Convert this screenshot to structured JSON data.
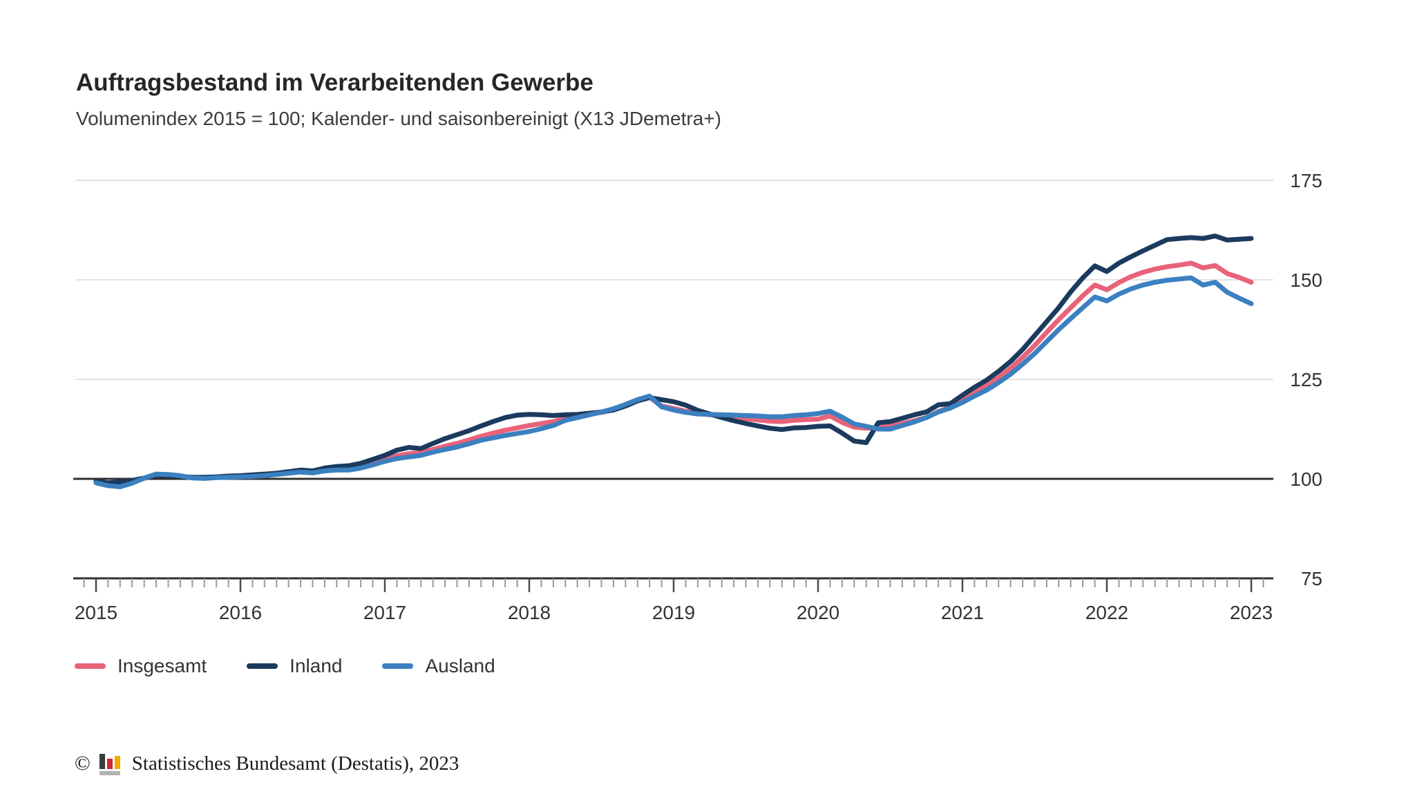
{
  "footer": {
    "copyright": "©",
    "source": "Statistisches Bundesamt (Destatis), 2023"
  },
  "logo_colors": {
    "black": "#3c3c3b",
    "red": "#d22832",
    "yellow": "#f0ab00",
    "gray": "#b2b2b2"
  },
  "chart_data": {
    "type": "line",
    "title": "Auftragsbestand im Verarbeitenden Gewerbe",
    "subtitle": "Volumenindex 2015 = 100; Kalender- und saisonbereinigt (X13 JDemetra+)",
    "x": {
      "start": "2015-01",
      "end": "2023-01",
      "frequency": "monthly",
      "n_points": 97
    },
    "x_tick_labels": [
      "2015",
      "2016",
      "2017",
      "2018",
      "2019",
      "2020",
      "2021",
      "2022",
      "2023"
    ],
    "y_ticks": [
      75,
      100,
      125,
      150,
      175
    ],
    "ylim": [
      75,
      175
    ],
    "baseline": 100,
    "grid": true,
    "legend_position": "bottom-left",
    "colors": {
      "grid": "#d9d9d9",
      "axis": "#2f2f2f",
      "minor_tick": "#9a9a9a",
      "major_tick": "#4a4a4a",
      "label": "#333333"
    },
    "series": [
      {
        "name": "Insgesamt",
        "color": "#e8637a",
        "values": [
          99.2,
          98.6,
          98.4,
          99.2,
          100.1,
          101.0,
          100.9,
          100.7,
          100.3,
          100.2,
          100.4,
          100.5,
          100.6,
          100.8,
          101.0,
          101.2,
          101.6,
          101.9,
          101.7,
          102.3,
          102.6,
          102.7,
          103.2,
          104.1,
          105.0,
          105.8,
          106.3,
          106.6,
          107.4,
          108.2,
          108.9,
          109.8,
          110.7,
          111.5,
          112.2,
          112.8,
          113.4,
          113.9,
          114.4,
          115.2,
          115.7,
          116.2,
          116.7,
          117.4,
          118.4,
          119.7,
          120.5,
          118.3,
          117.7,
          117.0,
          116.5,
          116.1,
          115.8,
          115.5,
          115.1,
          114.8,
          114.5,
          114.4,
          114.7,
          114.9,
          115.0,
          115.8,
          114.2,
          113.0,
          112.7,
          112.9,
          113.2,
          113.9,
          114.6,
          115.4,
          116.9,
          118.0,
          120.0,
          121.7,
          123.4,
          125.4,
          127.8,
          130.5,
          133.5,
          136.8,
          140.0,
          143.0,
          146.0,
          148.7,
          147.5,
          149.3,
          150.8,
          151.9,
          152.7,
          153.3,
          153.7,
          154.2,
          153.0,
          153.6,
          151.6,
          150.6,
          149.4
        ]
      },
      {
        "name": "Inland",
        "color": "#1b3a5e",
        "values": [
          99.4,
          99.0,
          99.2,
          99.6,
          100.2,
          100.9,
          100.8,
          100.6,
          100.4,
          100.4,
          100.5,
          100.7,
          100.8,
          101.0,
          101.2,
          101.4,
          101.8,
          102.2,
          102.0,
          102.7,
          103.1,
          103.3,
          103.9,
          104.9,
          105.9,
          107.2,
          107.9,
          107.6,
          108.9,
          110.1,
          111.1,
          112.1,
          113.3,
          114.4,
          115.4,
          116.0,
          116.2,
          116.1,
          115.9,
          116.1,
          116.2,
          116.5,
          116.8,
          117.3,
          118.3,
          119.6,
          120.4,
          119.9,
          119.4,
          118.5,
          117.2,
          116.3,
          115.4,
          114.6,
          113.9,
          113.3,
          112.7,
          112.4,
          112.8,
          112.9,
          113.2,
          113.3,
          111.5,
          109.5,
          109.1,
          114.1,
          114.4,
          115.2,
          116.1,
          116.8,
          118.6,
          118.9,
          121.0,
          123.0,
          124.8,
          127.0,
          129.5,
          132.5,
          136.0,
          139.5,
          143.0,
          147.0,
          150.5,
          153.5,
          152.1,
          154.2,
          155.8,
          157.3,
          158.7,
          160.1,
          160.4,
          160.6,
          160.4,
          161.0,
          160.0,
          160.2,
          160.4
        ]
      },
      {
        "name": "Ausland",
        "color": "#3b80c0",
        "values": [
          99.0,
          98.3,
          98.0,
          98.9,
          100.2,
          101.2,
          101.1,
          100.8,
          100.2,
          100.1,
          100.3,
          100.4,
          100.5,
          100.6,
          100.8,
          101.1,
          101.4,
          101.7,
          101.5,
          102.0,
          102.2,
          102.2,
          102.7,
          103.5,
          104.4,
          105.1,
          105.5,
          105.9,
          106.7,
          107.4,
          108.0,
          108.8,
          109.7,
          110.3,
          110.9,
          111.4,
          111.9,
          112.6,
          113.4,
          114.7,
          115.4,
          116.1,
          116.8,
          117.6,
          118.7,
          119.9,
          120.8,
          118.1,
          117.3,
          116.7,
          116.3,
          116.2,
          116.1,
          116.0,
          115.9,
          115.8,
          115.6,
          115.6,
          115.9,
          116.1,
          116.4,
          117.0,
          115.5,
          113.8,
          113.2,
          112.5,
          112.5,
          113.4,
          114.3,
          115.4,
          116.8,
          117.8,
          119.2,
          120.8,
          122.3,
          124.2,
          126.3,
          128.8,
          131.5,
          134.5,
          137.5,
          140.3,
          143.0,
          145.7,
          144.7,
          146.4,
          147.7,
          148.7,
          149.4,
          149.9,
          150.2,
          150.5,
          148.7,
          149.4,
          146.9,
          145.4,
          144.0
        ]
      }
    ]
  }
}
